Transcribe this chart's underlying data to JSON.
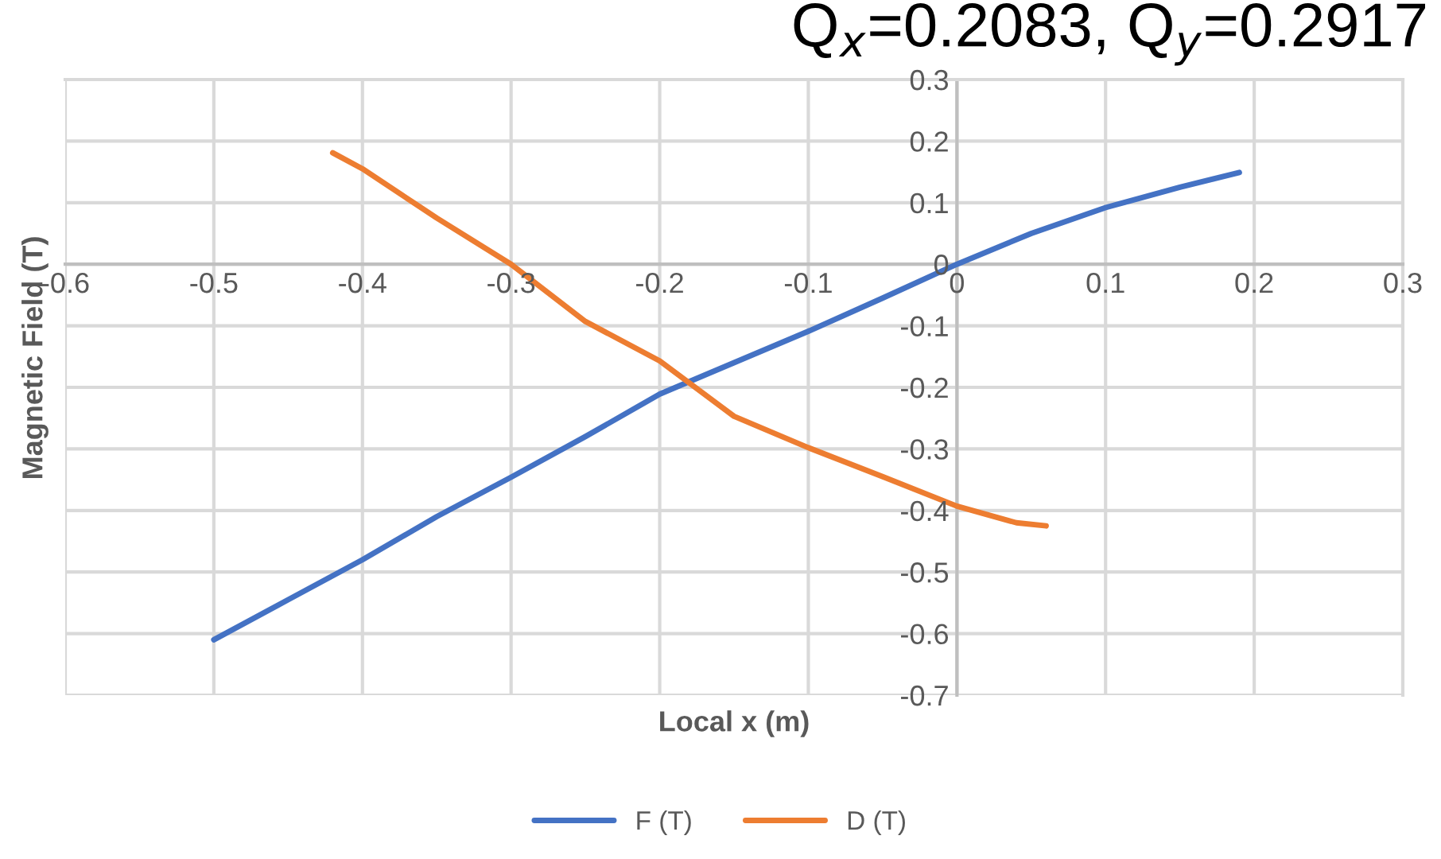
{
  "chart_data": {
    "type": "line",
    "xlabel": "Local x (m)",
    "ylabel": "Magnetic Field (T)",
    "xlim": [
      -0.6,
      0.3
    ],
    "ylim": [
      -0.7,
      0.3
    ],
    "xticks": [
      -0.6,
      -0.5,
      -0.4,
      -0.3,
      -0.2,
      -0.1,
      0,
      0.1,
      0.2,
      0.3
    ],
    "yticks": [
      -0.7,
      -0.6,
      -0.5,
      -0.4,
      -0.3,
      -0.2,
      -0.1,
      0,
      0.1,
      0.2,
      0.3
    ],
    "grid": true,
    "legend": "bottom",
    "marker": "none",
    "line_style": "solid",
    "annotations": [
      "Q$_{x}$=0.2083, Q$_{y}$=0.2917"
    ],
    "series": [
      {
        "name": "F (T)",
        "color": "#4472c4",
        "x": [
          -0.5,
          -0.45,
          -0.4,
          -0.35,
          -0.3,
          -0.25,
          -0.2,
          -0.15,
          -0.1,
          -0.05,
          0,
          0.05,
          0.1,
          0.15,
          0.19
        ],
        "values": [
          -0.61,
          -0.545,
          -0.48,
          -0.41,
          -0.346,
          -0.28,
          -0.211,
          -0.16,
          -0.109,
          -0.055,
          0,
          0.05,
          0.092,
          0.125,
          0.149
        ]
      },
      {
        "name": "D (T)",
        "color": "#ed7d31",
        "x": [
          -0.42,
          -0.4,
          -0.35,
          -0.3,
          -0.25,
          -0.2,
          -0.15,
          -0.1,
          -0.05,
          0,
          0.04,
          0.06
        ],
        "values": [
          0.181,
          0.155,
          0.075,
          0,
          -0.093,
          -0.157,
          -0.247,
          -0.298,
          -0.345,
          -0.393,
          -0.42,
          -0.425
        ]
      }
    ]
  }
}
